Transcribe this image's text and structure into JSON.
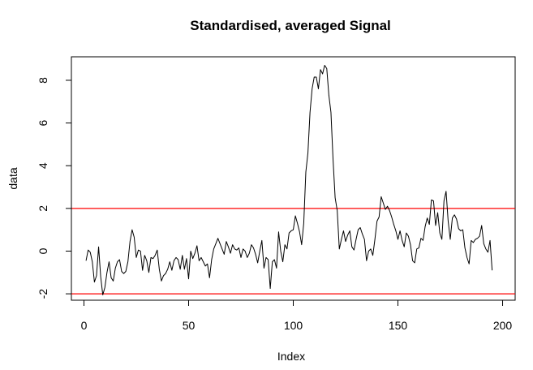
{
  "chart_data": {
    "type": "line",
    "title": "Standardised, averaged Signal",
    "xlabel": "Index",
    "ylabel": "data",
    "xlim": [
      -6,
      206
    ],
    "ylim": [
      -2.3,
      9.1
    ],
    "x_ticks": [
      0,
      50,
      100,
      150,
      200
    ],
    "x_tick_labels": [
      "0",
      "50",
      "100",
      "150",
      "200"
    ],
    "y_ticks": [
      -2,
      0,
      2,
      4,
      6,
      8
    ],
    "y_tick_labels": [
      "-2",
      "0",
      "2",
      "4",
      "6",
      "8"
    ],
    "grid": false,
    "reference_lines": [
      {
        "y": 2,
        "color": "#ff0000"
      },
      {
        "y": -2,
        "color": "#ff0000"
      }
    ],
    "series": [
      {
        "color": "#000000",
        "x_start": 1,
        "values": [
          -0.45,
          0.05,
          -0.05,
          -0.5,
          -1.45,
          -1.15,
          0.2,
          -1.2,
          -2.05,
          -1.7,
          -1.0,
          -0.5,
          -1.25,
          -1.4,
          -0.8,
          -0.5,
          -0.4,
          -0.95,
          -1.05,
          -0.95,
          -0.5,
          0.45,
          1.0,
          0.65,
          -0.3,
          0.05,
          0.0,
          -0.9,
          -0.2,
          -0.45,
          -1.0,
          -0.3,
          -0.35,
          -0.2,
          0.05,
          -0.85,
          -1.4,
          -1.15,
          -1.05,
          -0.85,
          -0.5,
          -0.9,
          -0.45,
          -0.3,
          -0.4,
          -0.85,
          -0.2,
          -0.85,
          -0.35,
          -1.3,
          0.0,
          -0.35,
          -0.1,
          0.25,
          -0.45,
          -0.3,
          -0.5,
          -0.7,
          -0.6,
          -1.25,
          -0.4,
          0.1,
          0.35,
          0.6,
          0.35,
          0.1,
          -0.15,
          0.45,
          0.2,
          -0.1,
          0.3,
          0.1,
          0.05,
          0.15,
          -0.3,
          0.1,
          0.0,
          -0.3,
          -0.1,
          0.3,
          0.15,
          -0.15,
          -0.55,
          0.0,
          0.5,
          -0.8,
          -0.3,
          -0.4,
          -1.75,
          -0.5,
          -0.4,
          -0.8,
          0.9,
          0.0,
          -0.5,
          0.3,
          0.1,
          0.85,
          0.95,
          1.0,
          1.65,
          1.3,
          0.9,
          0.3,
          1.3,
          3.7,
          4.6,
          6.5,
          7.6,
          8.15,
          8.15,
          7.6,
          8.5,
          8.3,
          8.7,
          8.55,
          7.3,
          6.5,
          4.3,
          2.5,
          1.9,
          0.1,
          0.55,
          0.95,
          0.45,
          0.75,
          0.95,
          0.2,
          0.05,
          0.55,
          1.0,
          1.1,
          0.8,
          0.55,
          -0.45,
          0.0,
          0.1,
          -0.2,
          0.55,
          1.4,
          1.6,
          2.55,
          2.25,
          1.95,
          2.1,
          1.9,
          1.6,
          1.25,
          0.95,
          0.55,
          0.95,
          0.5,
          0.2,
          0.85,
          0.7,
          0.3,
          -0.45,
          -0.55,
          0.1,
          0.15,
          0.6,
          0.5,
          1.15,
          1.55,
          1.25,
          2.4,
          2.35,
          1.2,
          1.8,
          0.85,
          0.55,
          2.35,
          2.8,
          1.4,
          0.55,
          1.55,
          1.7,
          1.5,
          1.05,
          0.95,
          1.0,
          0.15,
          -0.3,
          -0.6,
          0.5,
          0.4,
          0.55,
          0.6,
          0.7,
          1.2,
          0.35,
          0.1,
          -0.05,
          0.5,
          -0.9
        ]
      }
    ]
  }
}
